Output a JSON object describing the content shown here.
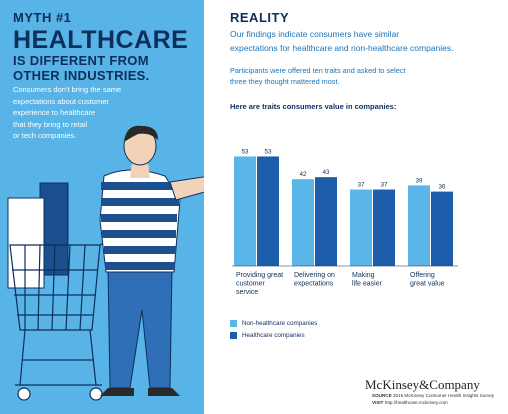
{
  "left_panel": {
    "myth_label": "MYTH #1",
    "headline_main": "HEALTHCARE",
    "headline_sub_lines": [
      "IS DIFFERENT FROM",
      "OTHER INDUSTRIES."
    ],
    "body_lines": [
      "Consumers don't bring the same",
      "expectations about customer",
      "experience to healthcare",
      "that they bring to retail",
      "or tech companies."
    ]
  },
  "right_panel": {
    "title": "REALITY",
    "intro_lines": [
      "Our findings indicate consumers have similar",
      "expectations for healthcare and non-healthcare companies."
    ],
    "method_lines": [
      "Participants were offered ten traits and asked to select",
      "three they thought mattered most."
    ]
  },
  "chart_data": {
    "type": "bar",
    "title": "Here are traits consumers value in companies:",
    "categories": [
      [
        "Providing great",
        "customer",
        "service"
      ],
      [
        "Delivering on",
        "expectations"
      ],
      [
        "Making",
        "life easier"
      ],
      [
        "Offering",
        "great value"
      ]
    ],
    "series": [
      {
        "name": "Non-healthcare companies",
        "values": [
          53,
          42,
          37,
          39
        ],
        "color": "#5ab5e8"
      },
      {
        "name": "Healthcare companies",
        "values": [
          53,
          43,
          37,
          36
        ],
        "color": "#1c5eac"
      }
    ],
    "ylim": [
      0,
      60
    ],
    "grid": false,
    "legend_position": "bottom-left",
    "data_labels": true
  },
  "branding": {
    "logo_text": "McKinsey&Company",
    "source_label": "SOURCE",
    "source_text": "2015 McKinsey Consumer Health Insights Survey",
    "visit_label": "VISIT",
    "visit_text": "http://healthcare.mckinsey.com"
  },
  "colors": {
    "left_background": "#58b3e6",
    "dark_navy": "#0d2f5c",
    "accent_blue": "#1b75bb"
  }
}
